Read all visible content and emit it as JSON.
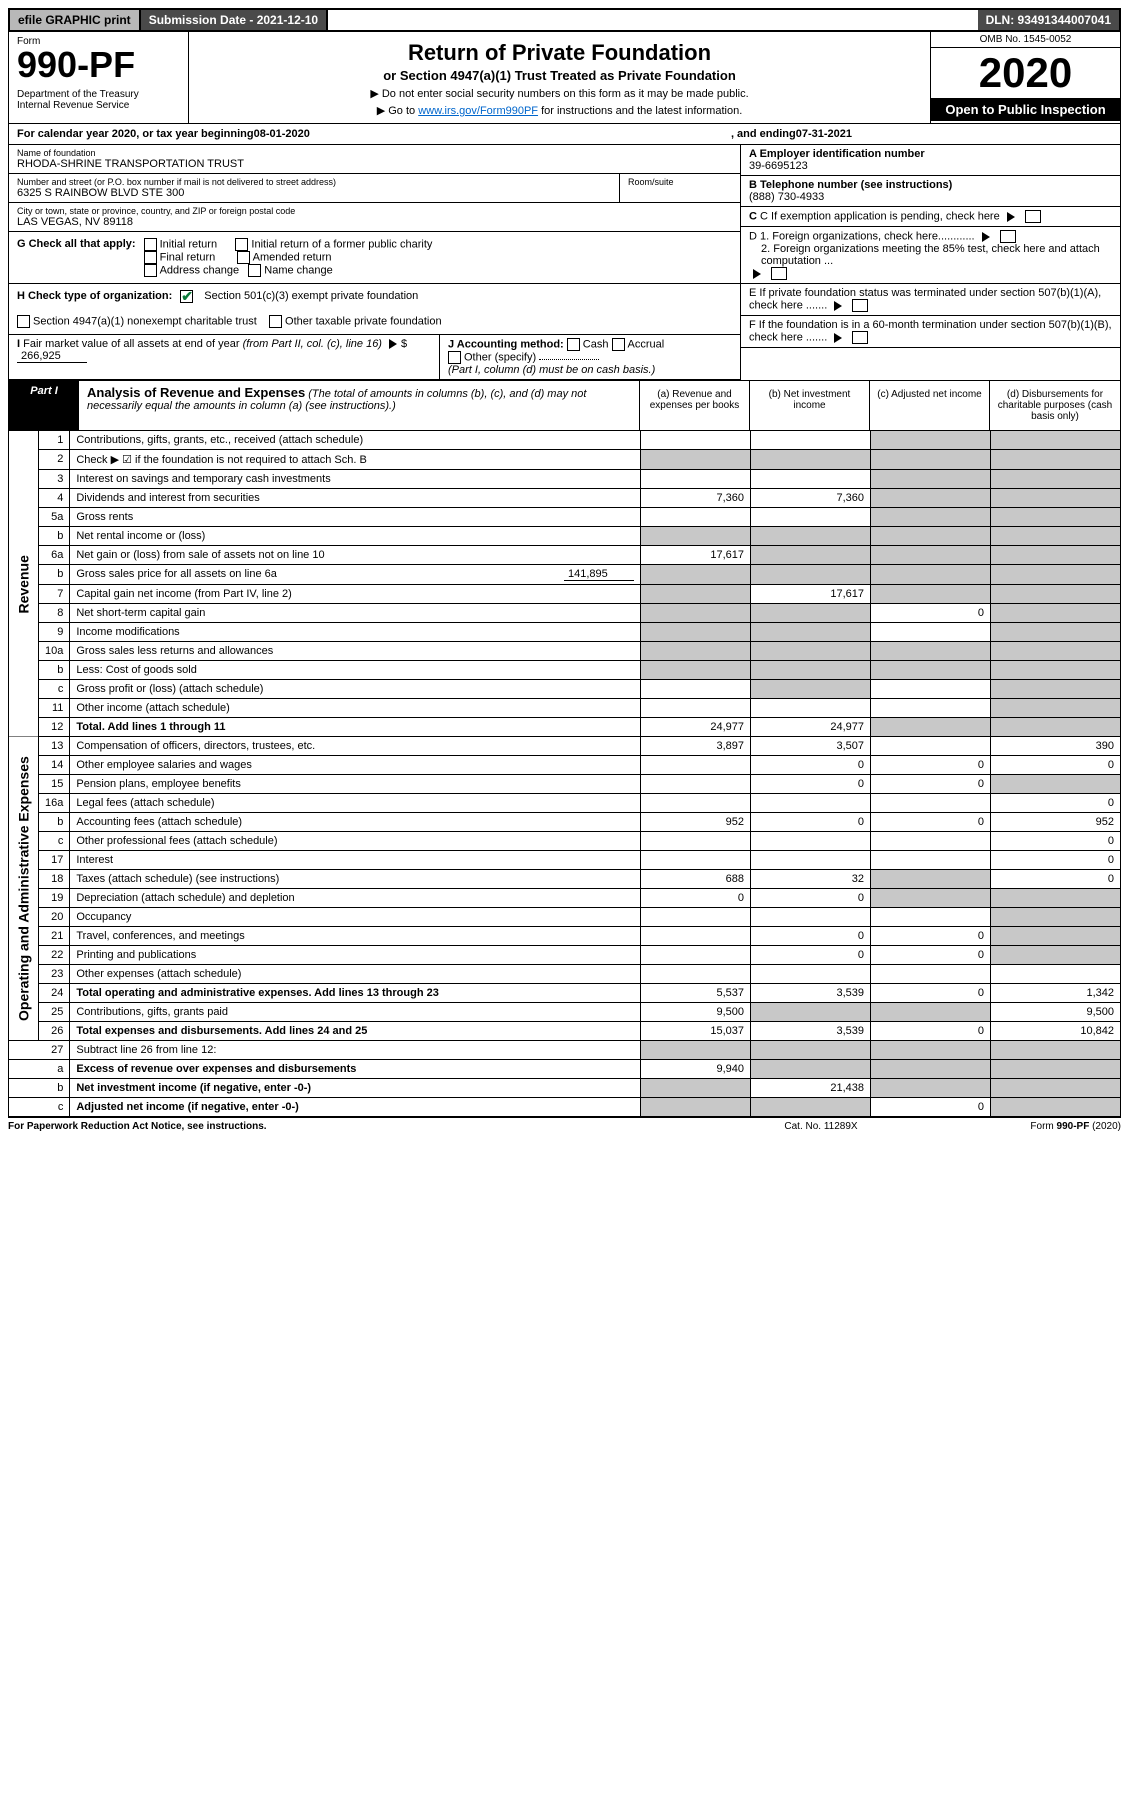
{
  "topbar": {
    "efile": "efile GRAPHIC print",
    "submission": "Submission Date - 2021-12-10",
    "dln": "DLN: 93491344007041"
  },
  "header": {
    "form_label": "Form",
    "form_no": "990-PF",
    "dept": "Department of the Treasury\nInternal Revenue Service",
    "title": "Return of Private Foundation",
    "subtitle": "or Section 4947(a)(1) Trust Treated as Private Foundation",
    "note1": "▶ Do not enter social security numbers on this form as it may be made public.",
    "note2_pre": "▶ Go to ",
    "note2_link": "www.irs.gov/Form990PF",
    "note2_post": " for instructions and the latest information.",
    "omb": "OMB No. 1545-0052",
    "year": "2020",
    "open": "Open to Public Inspection"
  },
  "calendar": {
    "text_pre": "For calendar year 2020, or tax year beginning ",
    "begin": "08-01-2020",
    "mid": ", and ending ",
    "end": "07-31-2021"
  },
  "entity": {
    "name_lbl": "Name of foundation",
    "name": "RHODA-SHRINE TRANSPORTATION TRUST",
    "addr_lbl": "Number and street (or P.O. box number if mail is not delivered to street address)",
    "room_lbl": "Room/suite",
    "addr": "6325 S RAINBOW BLVD STE 300",
    "city_lbl": "City or town, state or province, country, and ZIP or foreign postal code",
    "city": "LAS VEGAS, NV  89118",
    "ein_lbl": "A Employer identification number",
    "ein": "39-6695123",
    "phone_lbl": "B Telephone number (see instructions)",
    "phone": "(888) 730-4933",
    "c_lbl": "C If exemption application is pending, check here",
    "d1": "D 1. Foreign organizations, check here............",
    "d2": "2. Foreign organizations meeting the 85% test, check here and attach computation ...",
    "e": "E If private foundation status was terminated under section 507(b)(1)(A), check here .......",
    "f": "F If the foundation is in a 60-month termination under section 507(b)(1)(B), check here .......",
    "g_lbl": "G Check all that apply:",
    "g_opts": [
      "Initial return",
      "Final return",
      "Address change",
      "Initial return of a former public charity",
      "Amended return",
      "Name change"
    ],
    "h_lbl": "H Check type of organization:",
    "h1": "Section 501(c)(3) exempt private foundation",
    "h2": "Section 4947(a)(1) nonexempt charitable trust",
    "h3": "Other taxable private foundation",
    "i_lbl": "I Fair market value of all assets at end of year (from Part II, col. (c), line 16) ▶ $",
    "i_val": "266,925",
    "j_lbl": "J Accounting method:",
    "j_opts": [
      "Cash",
      "Accrual"
    ],
    "j_other": "Other (specify)",
    "j_note": "(Part I, column (d) must be on cash basis.)"
  },
  "part1": {
    "label": "Part I",
    "title": "Analysis of Revenue and Expenses",
    "title_sub": "(The total of amounts in columns (b), (c), and (d) may not necessarily equal the amounts in column (a) (see instructions).)",
    "col_a": "(a) Revenue and expenses per books",
    "col_b": "(b) Net investment income",
    "col_c": "(c) Adjusted net income",
    "col_d": "(d) Disbursements for charitable purposes (cash basis only)"
  },
  "sections": {
    "revenue": "Revenue",
    "opex": "Operating and Administrative Expenses"
  },
  "rows": {
    "r1": {
      "n": "1",
      "d": "Contributions, gifts, grants, etc., received (attach schedule)"
    },
    "r2": {
      "n": "2",
      "d": "Check ▶ ☑ if the foundation is not required to attach Sch. B"
    },
    "r3": {
      "n": "3",
      "d": "Interest on savings and temporary cash investments"
    },
    "r4": {
      "n": "4",
      "d": "Dividends and interest from securities",
      "a": "7,360",
      "b": "7,360"
    },
    "r5a": {
      "n": "5a",
      "d": "Gross rents"
    },
    "r5b": {
      "n": "b",
      "d": "Net rental income or (loss)"
    },
    "r6a": {
      "n": "6a",
      "d": "Net gain or (loss) from sale of assets not on line 10",
      "a": "17,617"
    },
    "r6b": {
      "n": "b",
      "d": "Gross sales price for all assets on line 6a",
      "inline": "141,895"
    },
    "r7": {
      "n": "7",
      "d": "Capital gain net income (from Part IV, line 2)",
      "b": "17,617"
    },
    "r8": {
      "n": "8",
      "d": "Net short-term capital gain",
      "c": "0"
    },
    "r9": {
      "n": "9",
      "d": "Income modifications"
    },
    "r10a": {
      "n": "10a",
      "d": "Gross sales less returns and allowances"
    },
    "r10b": {
      "n": "b",
      "d": "Less: Cost of goods sold"
    },
    "r10c": {
      "n": "c",
      "d": "Gross profit or (loss) (attach schedule)"
    },
    "r11": {
      "n": "11",
      "d": "Other income (attach schedule)"
    },
    "r12": {
      "n": "12",
      "d": "Total. Add lines 1 through 11",
      "a": "24,977",
      "b": "24,977",
      "bold": true
    },
    "r13": {
      "n": "13",
      "d": "Compensation of officers, directors, trustees, etc.",
      "a": "3,897",
      "b": "3,507",
      "dd": "390"
    },
    "r14": {
      "n": "14",
      "d": "Other employee salaries and wages",
      "b": "0",
      "c": "0",
      "dd": "0"
    },
    "r15": {
      "n": "15",
      "d": "Pension plans, employee benefits",
      "b": "0",
      "c": "0"
    },
    "r16a": {
      "n": "16a",
      "d": "Legal fees (attach schedule)",
      "dd": "0"
    },
    "r16b": {
      "n": "b",
      "d": "Accounting fees (attach schedule)",
      "a": "952",
      "b": "0",
      "c": "0",
      "dd": "952"
    },
    "r16c": {
      "n": "c",
      "d": "Other professional fees (attach schedule)",
      "dd": "0"
    },
    "r17": {
      "n": "17",
      "d": "Interest",
      "dd": "0"
    },
    "r18": {
      "n": "18",
      "d": "Taxes (attach schedule) (see instructions)",
      "a": "688",
      "b": "32",
      "dd": "0"
    },
    "r19": {
      "n": "19",
      "d": "Depreciation (attach schedule) and depletion",
      "a": "0",
      "b": "0"
    },
    "r20": {
      "n": "20",
      "d": "Occupancy"
    },
    "r21": {
      "n": "21",
      "d": "Travel, conferences, and meetings",
      "b": "0",
      "c": "0"
    },
    "r22": {
      "n": "22",
      "d": "Printing and publications",
      "b": "0",
      "c": "0"
    },
    "r23": {
      "n": "23",
      "d": "Other expenses (attach schedule)"
    },
    "r24": {
      "n": "24",
      "d": "Total operating and administrative expenses. Add lines 13 through 23",
      "a": "5,537",
      "b": "3,539",
      "c": "0",
      "dd": "1,342",
      "bold": true
    },
    "r25": {
      "n": "25",
      "d": "Contributions, gifts, grants paid",
      "a": "9,500",
      "dd": "9,500"
    },
    "r26": {
      "n": "26",
      "d": "Total expenses and disbursements. Add lines 24 and 25",
      "a": "15,037",
      "b": "3,539",
      "c": "0",
      "dd": "10,842",
      "bold": true
    },
    "r27": {
      "n": "27",
      "d": "Subtract line 26 from line 12:"
    },
    "r27a": {
      "n": "a",
      "d": "Excess of revenue over expenses and disbursements",
      "a": "9,940",
      "bold": true
    },
    "r27b": {
      "n": "b",
      "d": "Net investment income (if negative, enter -0-)",
      "b": "21,438",
      "bold": true
    },
    "r27c": {
      "n": "c",
      "d": "Adjusted net income (if negative, enter -0-)",
      "c": "0",
      "bold": true
    }
  },
  "footer": {
    "left": "For Paperwork Reduction Act Notice, see instructions.",
    "mid": "Cat. No. 11289X",
    "right": "Form 990-PF (2020)"
  }
}
